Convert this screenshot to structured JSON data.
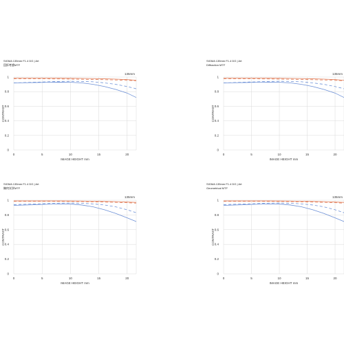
{
  "colors": {
    "sagittal": "#e07a55",
    "meridional": "#6b8fd6",
    "grid": "#d9d9d9",
    "axis": "#cfcfcf"
  },
  "chart_data": [
    {
      "type": "line",
      "title": "SIGMA 135mm F1.4 DG | Art",
      "subtitle": "回折考慮MTF",
      "focal_label": "135mm",
      "xlabel": "IMAGE HEIGHT  mm",
      "ylabel": "CONTRAST",
      "xlim": [
        0,
        21.6
      ],
      "ylim": [
        0,
        1
      ],
      "xticks": [
        "0",
        "5",
        "10",
        "15",
        "20"
      ],
      "yticks": [
        "0",
        "0.2",
        "0.4",
        "0.6",
        "0.8",
        "1"
      ],
      "grid": true,
      "x": [
        0,
        2,
        4,
        6,
        8,
        10,
        12,
        14,
        16,
        18,
        20,
        21.6
      ],
      "series": [
        {
          "color": "sagittal",
          "style": "solid",
          "values": [
            0.985,
            0.985,
            0.985,
            0.985,
            0.984,
            0.983,
            0.981,
            0.979,
            0.976,
            0.972,
            0.965,
            0.955
          ]
        },
        {
          "color": "sagittal",
          "style": "dashed",
          "values": [
            0.975,
            0.975,
            0.975,
            0.975,
            0.974,
            0.972,
            0.97,
            0.967,
            0.964,
            0.96,
            0.955,
            0.95
          ]
        },
        {
          "color": "meridional",
          "style": "solid",
          "values": [
            0.92,
            0.922,
            0.925,
            0.928,
            0.93,
            0.928,
            0.92,
            0.9,
            0.87,
            0.83,
            0.78,
            0.72
          ]
        },
        {
          "color": "meridional",
          "style": "dashed",
          "values": [
            0.92,
            0.925,
            0.93,
            0.935,
            0.94,
            0.942,
            0.94,
            0.935,
            0.92,
            0.9,
            0.87,
            0.84
          ]
        }
      ]
    },
    {
      "type": "line",
      "title": "SIGMA 135mm F1.4 DG | Art",
      "subtitle": "Diffraction MTF",
      "focal_label": "135mm",
      "xlabel": "IMAGE HEIGHT  mm",
      "ylabel": "CONTRAST",
      "xlim": [
        0,
        21.6
      ],
      "ylim": [
        0,
        1
      ],
      "xticks": [
        "0",
        "5",
        "10",
        "15",
        "20"
      ],
      "yticks": [
        "0",
        "0.2",
        "0.4",
        "0.6",
        "0.8",
        "1"
      ],
      "grid": true,
      "x": [
        0,
        2,
        4,
        6,
        8,
        10,
        12,
        14,
        16,
        18,
        20,
        21.6
      ],
      "series": [
        {
          "color": "sagittal",
          "style": "solid",
          "values": [
            0.985,
            0.985,
            0.985,
            0.985,
            0.984,
            0.983,
            0.981,
            0.979,
            0.976,
            0.972,
            0.965,
            0.955
          ]
        },
        {
          "color": "sagittal",
          "style": "dashed",
          "values": [
            0.975,
            0.975,
            0.975,
            0.975,
            0.974,
            0.972,
            0.97,
            0.967,
            0.964,
            0.96,
            0.955,
            0.95
          ]
        },
        {
          "color": "meridional",
          "style": "solid",
          "values": [
            0.92,
            0.922,
            0.925,
            0.928,
            0.93,
            0.928,
            0.92,
            0.9,
            0.87,
            0.83,
            0.78,
            0.72
          ]
        },
        {
          "color": "meridional",
          "style": "dashed",
          "values": [
            0.92,
            0.925,
            0.93,
            0.935,
            0.94,
            0.942,
            0.94,
            0.935,
            0.92,
            0.9,
            0.87,
            0.84
          ]
        }
      ]
    },
    {
      "type": "line",
      "title": "SIGMA 135mm F1.4 DG | Art",
      "subtitle": "幾何光学MTF",
      "focal_label": "135mm",
      "xlabel": "IMAGE HEIGHT  mm",
      "ylabel": "CONTRAST",
      "xlim": [
        0,
        21.6
      ],
      "ylim": [
        0,
        1
      ],
      "xticks": [
        "0",
        "5",
        "10",
        "15",
        "20"
      ],
      "yticks": [
        "0",
        "0.2",
        "0.4",
        "0.6",
        "0.8",
        "1"
      ],
      "grid": true,
      "x": [
        0,
        2,
        4,
        6,
        8,
        10,
        12,
        14,
        16,
        18,
        20,
        21.6
      ],
      "series": [
        {
          "color": "sagittal",
          "style": "solid",
          "values": [
            0.99,
            0.99,
            0.99,
            0.99,
            0.99,
            0.989,
            0.988,
            0.986,
            0.983,
            0.98,
            0.975,
            0.97
          ]
        },
        {
          "color": "sagittal",
          "style": "dashed",
          "values": [
            0.985,
            0.985,
            0.985,
            0.985,
            0.984,
            0.983,
            0.981,
            0.978,
            0.975,
            0.971,
            0.966,
            0.96
          ]
        },
        {
          "color": "meridional",
          "style": "solid",
          "values": [
            0.93,
            0.935,
            0.94,
            0.945,
            0.95,
            0.948,
            0.935,
            0.91,
            0.87,
            0.82,
            0.76,
            0.71
          ]
        },
        {
          "color": "meridional",
          "style": "dashed",
          "values": [
            0.94,
            0.945,
            0.95,
            0.955,
            0.96,
            0.962,
            0.958,
            0.95,
            0.935,
            0.91,
            0.87,
            0.83
          ]
        }
      ]
    },
    {
      "type": "line",
      "title": "SIGMA 135mm F1.4 DG | Art",
      "subtitle": "Geometrical MTF",
      "focal_label": "135mm",
      "xlabel": "IMAGE HEIGHT  mm",
      "ylabel": "CONTRAST",
      "xlim": [
        0,
        21.6
      ],
      "ylim": [
        0,
        1
      ],
      "xticks": [
        "0",
        "5",
        "10",
        "15",
        "20"
      ],
      "yticks": [
        "0",
        "0.2",
        "0.4",
        "0.6",
        "0.8",
        "1"
      ],
      "grid": true,
      "x": [
        0,
        2,
        4,
        6,
        8,
        10,
        12,
        14,
        16,
        18,
        20,
        21.6
      ],
      "series": [
        {
          "color": "sagittal",
          "style": "solid",
          "values": [
            0.99,
            0.99,
            0.99,
            0.99,
            0.99,
            0.989,
            0.988,
            0.986,
            0.983,
            0.98,
            0.975,
            0.97
          ]
        },
        {
          "color": "sagittal",
          "style": "dashed",
          "values": [
            0.985,
            0.985,
            0.985,
            0.985,
            0.984,
            0.983,
            0.981,
            0.978,
            0.975,
            0.971,
            0.966,
            0.96
          ]
        },
        {
          "color": "meridional",
          "style": "solid",
          "values": [
            0.93,
            0.935,
            0.94,
            0.945,
            0.95,
            0.948,
            0.935,
            0.91,
            0.87,
            0.82,
            0.76,
            0.71
          ]
        },
        {
          "color": "meridional",
          "style": "dashed",
          "values": [
            0.94,
            0.945,
            0.95,
            0.955,
            0.96,
            0.962,
            0.958,
            0.95,
            0.935,
            0.91,
            0.87,
            0.83
          ]
        }
      ]
    }
  ]
}
